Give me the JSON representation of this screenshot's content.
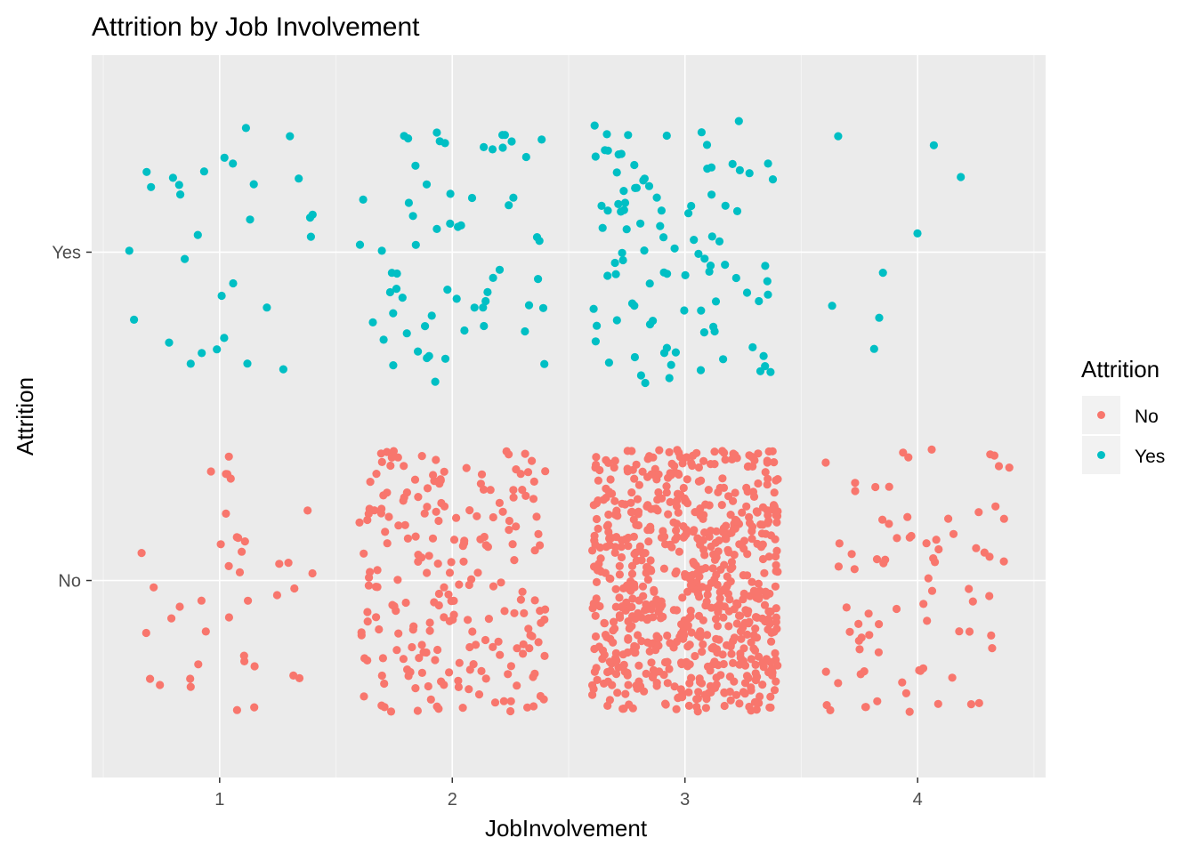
{
  "chart_data": {
    "type": "scatter",
    "title": "Attrition by Job Involvement",
    "xlabel": "JobInvolvement",
    "ylabel": "Attrition",
    "x_ticks": [
      "1",
      "2",
      "3",
      "4"
    ],
    "y_categories": [
      "No",
      "Yes"
    ],
    "xlim": [
      0.45,
      4.55
    ],
    "ylim": [
      0.4,
      2.6
    ],
    "jitter": 0.4,
    "grid": true,
    "legend": {
      "title": "Attrition",
      "position": "right",
      "entries": [
        {
          "label": "No",
          "color": "#F8766D"
        },
        {
          "label": "Yes",
          "color": "#00BFC4"
        }
      ]
    },
    "series": [
      {
        "name": "No",
        "color": "#F8766D",
        "counts": {
          "1": 40,
          "2": 220,
          "3": 710,
          "4": 80
        }
      },
      {
        "name": "Yes",
        "color": "#00BFC4",
        "counts": {
          "1": 30,
          "2": 63,
          "3": 100,
          "4": 8
        }
      }
    ]
  },
  "colors": {
    "panel_background": "#EBEBEB",
    "grid_major": "#FFFFFF",
    "grid_minor": "#F5F5F5",
    "tick_text": "#4D4D4D"
  }
}
